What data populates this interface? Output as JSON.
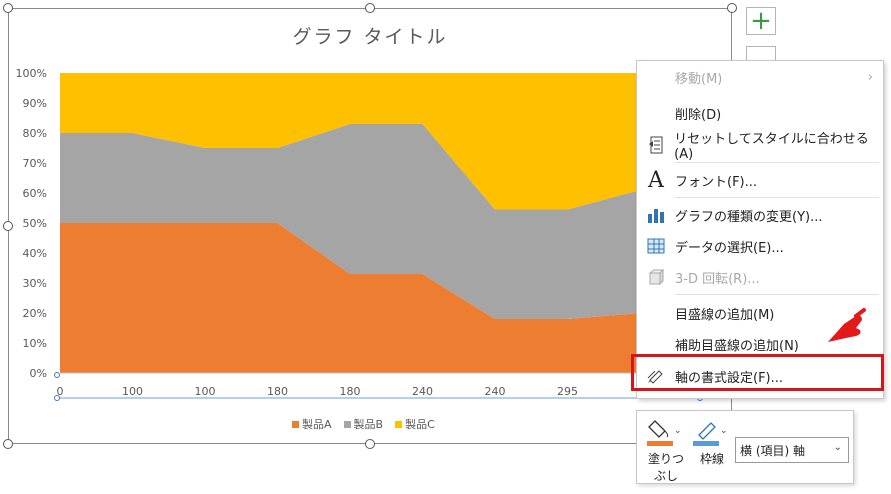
{
  "chart": {
    "title": "グラフ タイトル",
    "legend": [
      {
        "label": "製品A",
        "color": "#ED7D31"
      },
      {
        "label": "製品B",
        "color": "#A5A5A5"
      },
      {
        "label": "製品C",
        "color": "#FFC000"
      }
    ]
  },
  "chart_data": {
    "type": "area",
    "stacked_percent": true,
    "categories": [
      "0",
      "100",
      "100",
      "180",
      "180",
      "240",
      "240",
      "295",
      "295"
    ],
    "categories_visible_labels": [
      "0",
      "100",
      "100",
      "180",
      "180",
      "240",
      "240",
      "295",
      "2"
    ],
    "series": [
      {
        "name": "製品A",
        "values": [
          50,
          50,
          50,
          50,
          33,
          33,
          18,
          18,
          20
        ],
        "color": "#ED7D31"
      },
      {
        "name": "製品B",
        "values": [
          30,
          30,
          25,
          25,
          50,
          50,
          36.5,
          36.5,
          41
        ],
        "color": "#A5A5A5"
      },
      {
        "name": "製品C",
        "values": [
          20,
          20,
          25,
          25,
          17,
          17,
          45.5,
          45.5,
          39
        ],
        "color": "#FFC000"
      }
    ],
    "y_ticks": [
      "0%",
      "10%",
      "20%",
      "30%",
      "40%",
      "50%",
      "60%",
      "70%",
      "80%",
      "90%",
      "100%"
    ],
    "ylim": [
      0,
      100
    ],
    "grid": false,
    "legend_position": "bottom"
  },
  "menu": {
    "items": [
      {
        "label": "移動(M)",
        "disabled": true,
        "icon": "none",
        "submenu": true
      },
      {
        "label": "削除(D)",
        "icon": "none"
      },
      {
        "label": "リセットしてスタイルに合わせる(A)",
        "icon": "reset-style-icon"
      },
      {
        "label": "フォント(F)...",
        "icon": "font-icon"
      },
      {
        "label": "グラフの種類の変更(Y)...",
        "icon": "chart-type-icon"
      },
      {
        "label": "データの選択(E)...",
        "icon": "select-data-icon"
      },
      {
        "label": "3-D 回転(R)...",
        "disabled": true,
        "icon": "rotation-3d-icon"
      },
      {
        "label": "目盛線の追加(M)",
        "icon": "none"
      },
      {
        "label": "補助目盛線の追加(N)",
        "icon": "none"
      },
      {
        "label": "軸の書式設定(F)...",
        "icon": "format-axis-icon"
      }
    ]
  },
  "minitoolbar": {
    "fill_label_1": "塗りつ",
    "fill_label_2": "ぶし",
    "outline_label": "枠線",
    "select_value": "横 (項目) 軸",
    "fill_color": "#ED7D31",
    "outline_color": "#5B9BD5"
  }
}
